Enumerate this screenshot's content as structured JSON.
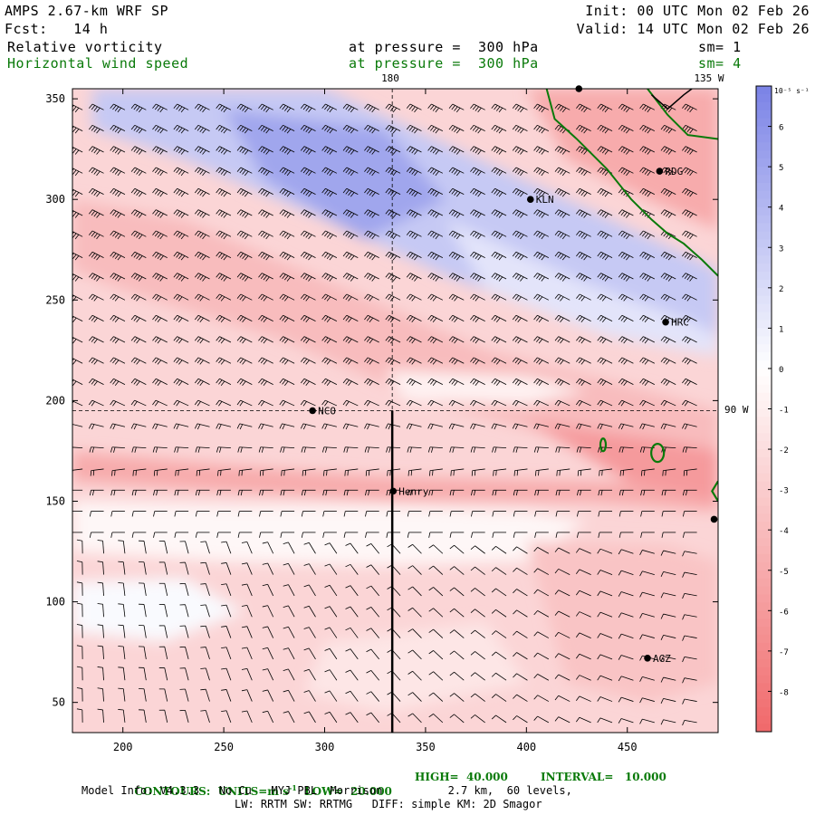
{
  "header": {
    "model_title": "AMPS 2.67-km WRF SP",
    "init_text": "Init: 00 UTC Mon 02 Feb 26",
    "fcst_text": "Fcst:   14 h",
    "valid_text": "Valid: 14 UTC Mon 02 Feb 26",
    "field1_name": "Relative vorticity",
    "field1_level": "at pressure =  300 hPa",
    "field1_sm": "sm= 1",
    "field2_name": "Horizontal wind speed",
    "field2_level": "at pressure =  300 hPa",
    "field2_sm": "sm= 4"
  },
  "colors": {
    "positive": "#7a82e6",
    "negative": "#f0686a",
    "contour": "#0a7a0a",
    "background": "#ffffff"
  },
  "chart_data": {
    "type": "heatmap",
    "x_ticks": [
      200,
      250,
      300,
      350,
      400,
      450
    ],
    "y_ticks": [
      50,
      100,
      150,
      200,
      250,
      300,
      350
    ],
    "x_range": [
      175,
      495
    ],
    "y_range": [
      35,
      355
    ],
    "colorbar": {
      "unit_label": "10⁻⁵ s⁻¹",
      "ticks": [
        6,
        5,
        4,
        3,
        2,
        1,
        0,
        -1,
        -2,
        -3,
        -4,
        -5,
        -6,
        -7,
        -8
      ],
      "range": [
        -9,
        7
      ]
    },
    "map_labels": {
      "lon_180": "180",
      "lon_135w": "135 W",
      "lon_90w": "90 W"
    },
    "stations": [
      {
        "name": "KLN",
        "x": 402,
        "y": 300
      },
      {
        "name": "RDG",
        "x": 466,
        "y": 314
      },
      {
        "name": "HRC",
        "x": 469,
        "y": 239
      },
      {
        "name": "NCO",
        "x": 294,
        "y": 195
      },
      {
        "name": "Henry",
        "x": 334,
        "y": 155
      },
      {
        "name": "AGZ",
        "x": 460,
        "y": 72
      },
      {
        "name": "",
        "x": 426,
        "y": 355
      },
      {
        "name": "",
        "x": 493,
        "y": 141
      }
    ],
    "contours": {
      "units": "m s⁻¹",
      "low": "20.000",
      "high": "40.000",
      "interval": "10.000"
    }
  },
  "footer": {
    "contours_label": "CONTOURS:  UNITS=m s",
    "units_exp": "-1",
    "low_label": "  LOW=  20.000",
    "high_label": "HIGH=  40.000",
    "interval_label": "INTERVAL=   10.000",
    "model_info": "Model Info: V4.3.3   No Cu   MYJ PBL  Morrison          2.7 km,  60 levels,",
    "model_info2": "LW: RRTM SW: RRTMG   DIFF: simple KM: 2D Smagor"
  }
}
